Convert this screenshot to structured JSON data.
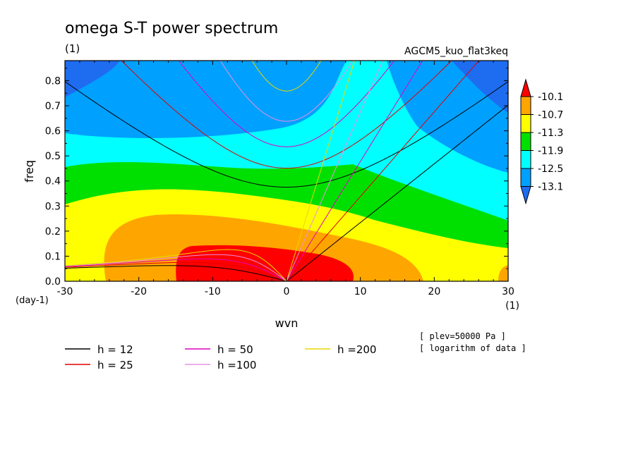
{
  "chart_data": {
    "type": "heatmap",
    "title": "omega S-T power spectrum",
    "subtitle": "(1)",
    "dataset_label": "AGCM5_kuo_flat3keq",
    "xlabel": "wvn",
    "ylabel": "freq",
    "x_unit_label": "(1)",
    "y_unit_label": "(day-1)",
    "xlim": [
      -30,
      30
    ],
    "ylim": [
      0,
      0.88
    ],
    "x_ticks": [
      -30,
      -20,
      -10,
      0,
      10,
      20,
      30
    ],
    "x_tick_labels": [
      "-30",
      "-20",
      "-10",
      "0",
      "10",
      "20",
      "30"
    ],
    "y_ticks": [
      0,
      0.1,
      0.2,
      0.3,
      0.4,
      0.5,
      0.6,
      0.7,
      0.8
    ],
    "y_tick_labels": [
      "0.0",
      "0.1",
      "0.2",
      "0.3",
      "0.4",
      "0.5",
      "0.6",
      "0.7",
      "0.8"
    ],
    "colorbar": {
      "levels": [
        -13.1,
        -12.5,
        -11.9,
        -11.3,
        -10.7,
        -10.1
      ],
      "level_labels": [
        "-13.1",
        "-12.5",
        "-11.9",
        "-11.3",
        "-10.7",
        "-10.1"
      ],
      "colors": [
        "#1e6cf0",
        "#00a0ff",
        "#00ffff",
        "#00e000",
        "#ffff00",
        "#ffa500",
        "#ff0000"
      ]
    },
    "dispersion_curves": [
      {
        "label": "h = 12",
        "h": 12,
        "color": "#000000"
      },
      {
        "label": "h = 25",
        "h": 25,
        "color": "#e00000"
      },
      {
        "label": "h = 50",
        "h": 50,
        "color": "#e000c0"
      },
      {
        "label": "h =100",
        "h": 100,
        "color": "#e890e0"
      },
      {
        "label": "h =200",
        "h": 200,
        "color": "#e8d800"
      }
    ],
    "notes": [
      "[ plev=50000 Pa ]",
      "[ logarithm of data ]"
    ]
  }
}
